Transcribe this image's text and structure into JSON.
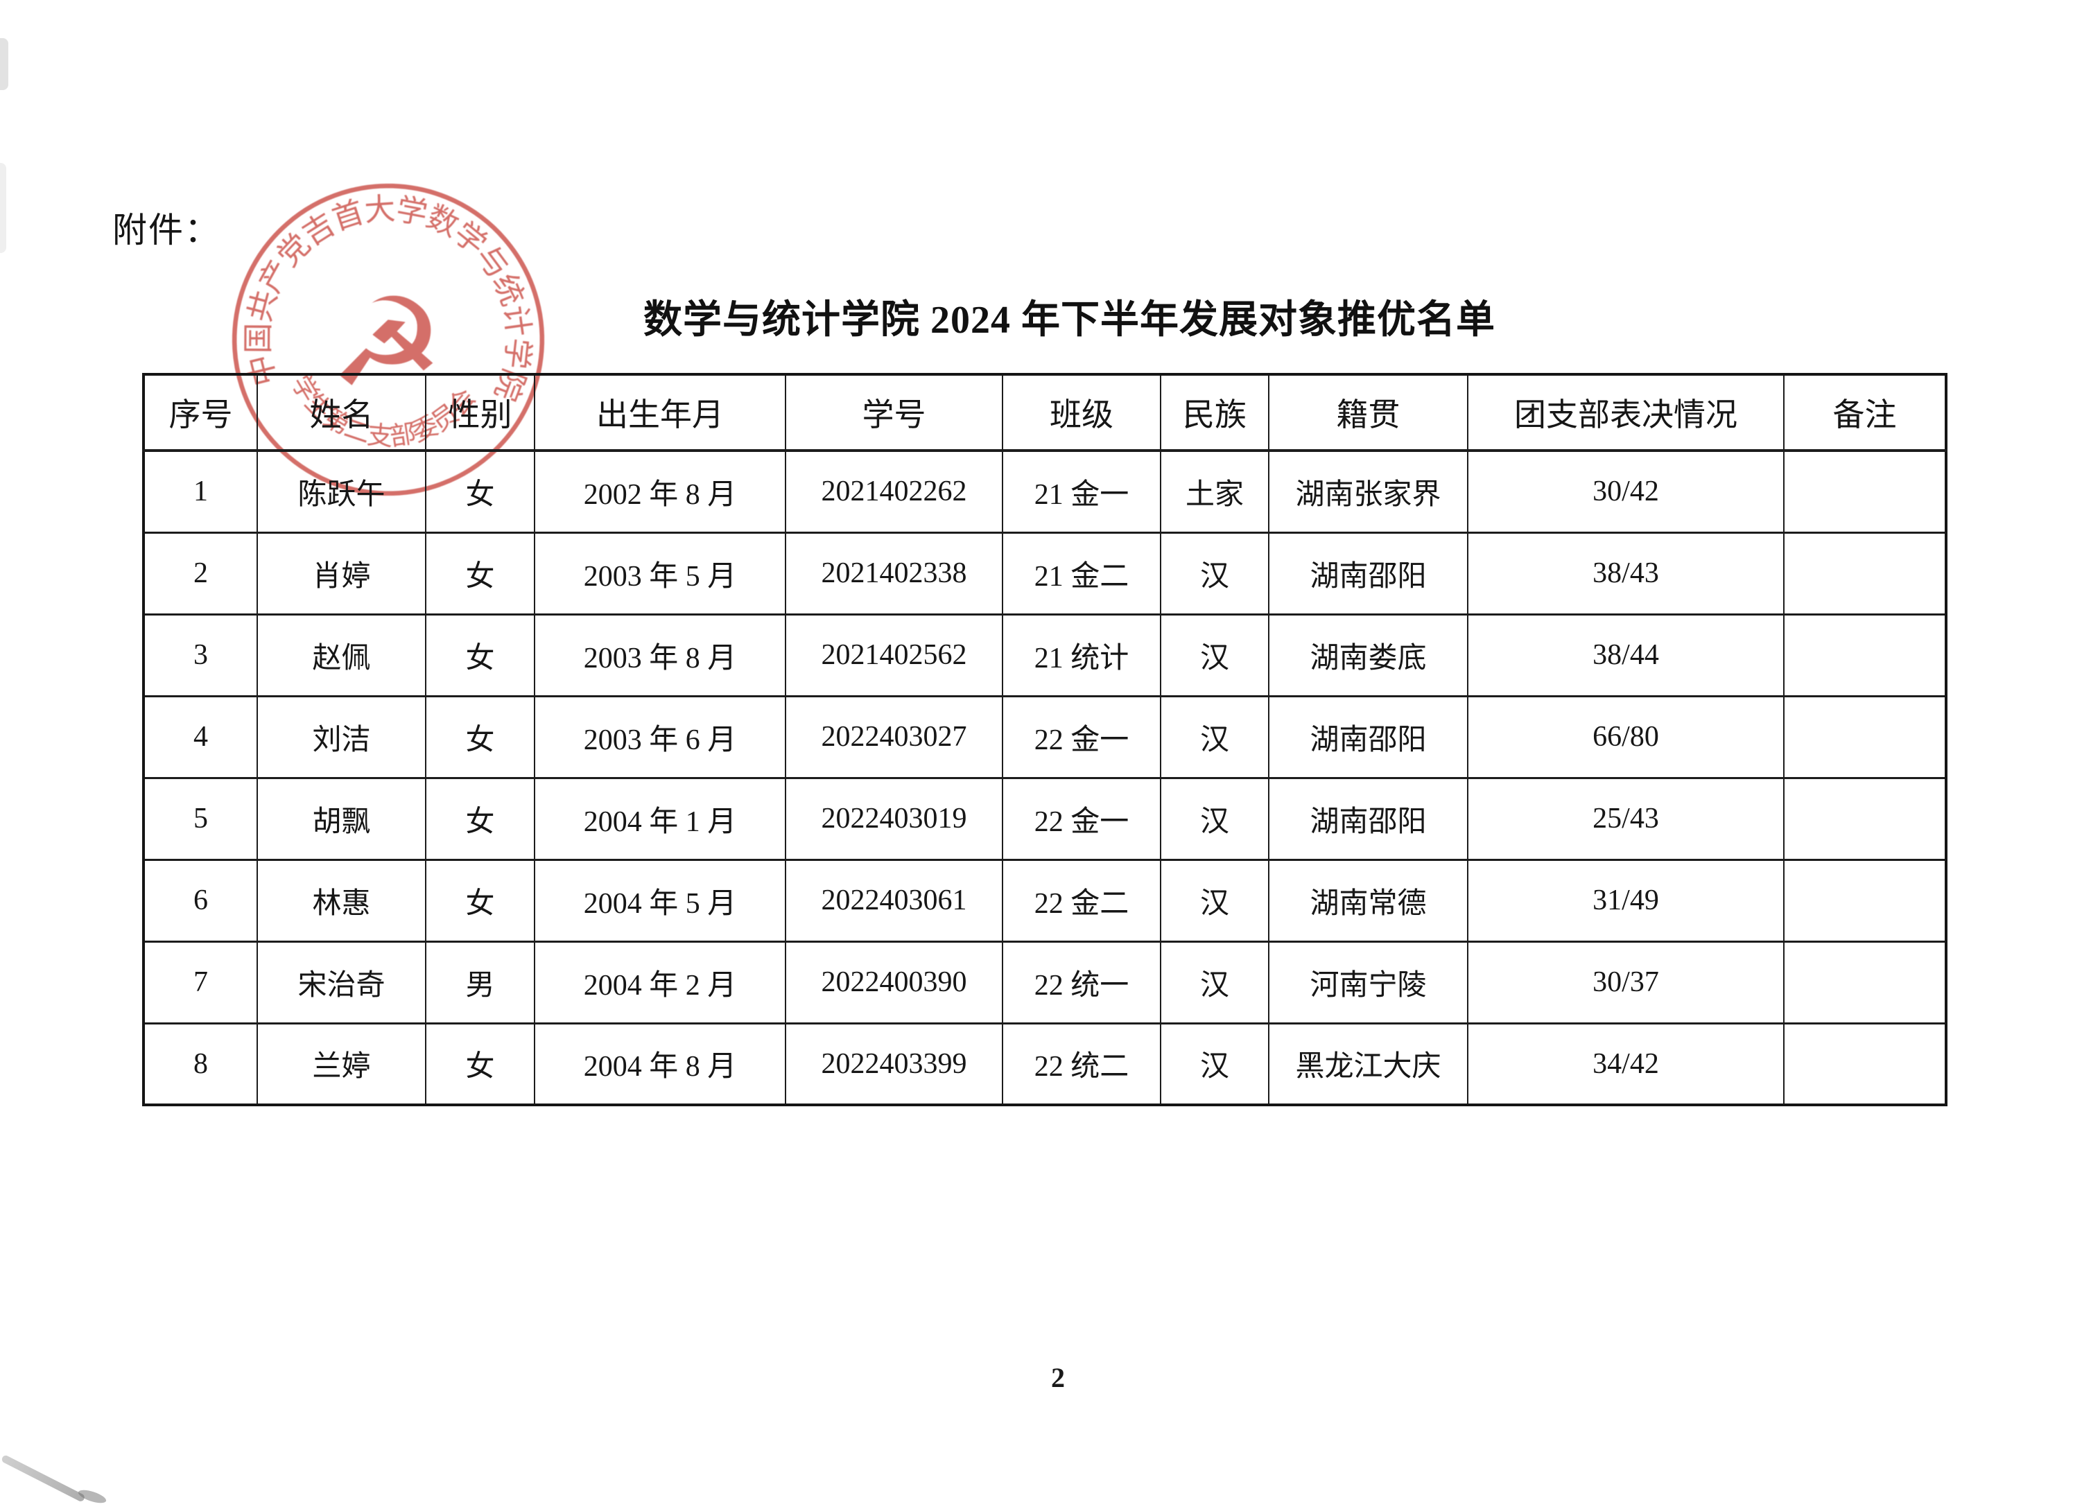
{
  "page": {
    "attachment_label": "附件：",
    "title": "数学与统计学院 2024 年下半年发展对象推优名单",
    "page_number": "2"
  },
  "stamp": {
    "ring_text": "中国共产党吉首大学数学与统计学院",
    "bottom_text": "学生第二支部委员会",
    "emblem_name": "hammer-and-sickle",
    "emblem_glyph": "☭",
    "ink_color": "#c8463e"
  },
  "table": {
    "columns": [
      "序号",
      "姓名",
      "性别",
      "出生年月",
      "学号",
      "班级",
      "民族",
      "籍贯",
      "团支部表决情况",
      "备注"
    ],
    "rows": [
      [
        "1",
        "陈跃午",
        "女",
        "2002 年 8 月",
        "2021402262",
        "21 金一",
        "土家",
        "湖南张家界",
        "30/42",
        ""
      ],
      [
        "2",
        "肖婷",
        "女",
        "2003 年 5 月",
        "2021402338",
        "21 金二",
        "汉",
        "湖南邵阳",
        "38/43",
        ""
      ],
      [
        "3",
        "赵佩",
        "女",
        "2003 年 8 月",
        "2021402562",
        "21 统计",
        "汉",
        "湖南娄底",
        "38/44",
        ""
      ],
      [
        "4",
        "刘洁",
        "女",
        "2003 年 6 月",
        "2022403027",
        "22 金一",
        "汉",
        "湖南邵阳",
        "66/80",
        ""
      ],
      [
        "5",
        "胡飘",
        "女",
        "2004 年 1 月",
        "2022403019",
        "22 金一",
        "汉",
        "湖南邵阳",
        "25/43",
        ""
      ],
      [
        "6",
        "林惠",
        "女",
        "2004 年 5 月",
        "2022403061",
        "22 金二",
        "汉",
        "湖南常德",
        "31/49",
        ""
      ],
      [
        "7",
        "宋治奇",
        "男",
        "2004 年 2 月",
        "2022400390",
        "22 统一",
        "汉",
        "河南宁陵",
        "30/37",
        ""
      ],
      [
        "8",
        "兰婷",
        "女",
        "2004 年 8 月",
        "2022403399",
        "22 统二",
        "汉",
        "黑龙江大庆",
        "34/42",
        ""
      ]
    ]
  }
}
